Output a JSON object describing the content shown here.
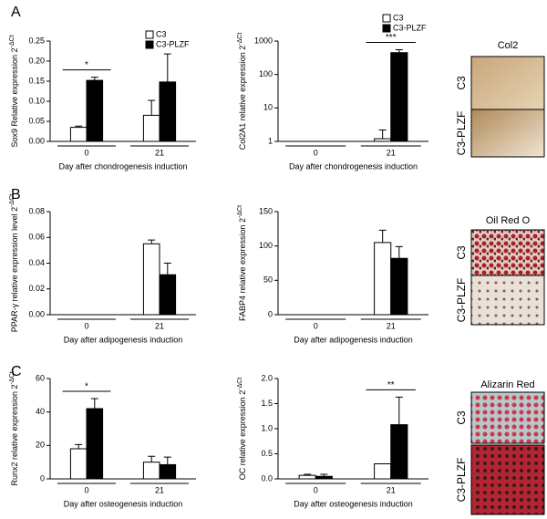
{
  "chart_data": [
    {
      "type": "bar",
      "panel": "A",
      "y_label": "Sox9 Relative expression 2",
      "y_label_sup": "-ΔCt",
      "x_label": "Day after chondrogenesis induction",
      "categories": [
        "0",
        "21"
      ],
      "series": [
        {
          "name": "C3",
          "color": "#ffffff",
          "values": [
            0.035,
            0.065
          ],
          "errors": [
            0.003,
            0.037
          ]
        },
        {
          "name": "C3-PLZF",
          "color": "#000000",
          "values": [
            0.152,
            0.148
          ],
          "errors": [
            0.008,
            0.07
          ]
        }
      ],
      "significance": [
        "*",
        null
      ],
      "legend": "top-right",
      "ylim": [
        0,
        0.25
      ],
      "yticks": [
        {
          "value": 0,
          "label": "0.00"
        },
        {
          "value": 0.05,
          "label": "0.05"
        },
        {
          "value": 0.1,
          "label": "0.10"
        },
        {
          "value": 0.15,
          "label": "0.15"
        },
        {
          "value": 0.2,
          "label": "0.20"
        },
        {
          "value": 0.25,
          "label": "0.25"
        }
      ]
    },
    {
      "type": "bar",
      "y_label": "Col2A1 relative expression 2",
      "y_label_sup": "-ΔCt",
      "x_label": "Day after chondrogenesis induction",
      "categories": [
        "0",
        "21"
      ],
      "series": [
        {
          "name": "C3",
          "color": "#ffffff",
          "values": [
            1,
            1.2
          ],
          "errors": [
            0,
            1
          ]
        },
        {
          "name": "C3-PLZF",
          "color": "#000000",
          "values": [
            1,
            450
          ],
          "errors": [
            0,
            100
          ]
        }
      ],
      "significance": [
        null,
        "***"
      ],
      "legend": "top-right",
      "log_scale": true,
      "ylim": [
        1,
        1000
      ],
      "yticks": [
        1,
        10,
        100,
        1000
      ]
    },
    {
      "type": "bar",
      "panel": "B",
      "y_label": "PPAR-γ relative expression level 2",
      "y_label_sup": "-ΔCt",
      "x_label": "Day after adipogenesis induction",
      "categories": [
        "0",
        "21"
      ],
      "series": [
        {
          "name": "C3",
          "color": "#ffffff",
          "values": [
            0,
            0.055
          ],
          "errors": [
            0,
            0.003
          ]
        },
        {
          "name": "C3-PLZF",
          "color": "#000000",
          "values": [
            0,
            0.031
          ],
          "errors": [
            0,
            0.009
          ]
        }
      ],
      "significance": [
        null,
        null
      ],
      "ylim": [
        0,
        0.08
      ],
      "yticks": [
        {
          "value": 0,
          "label": "0.00"
        },
        {
          "value": 0.02,
          "label": "0.02"
        },
        {
          "value": 0.04,
          "label": "0.04"
        },
        {
          "value": 0.06,
          "label": "0.06"
        },
        {
          "value": 0.08,
          "label": "0.08"
        }
      ]
    },
    {
      "type": "bar",
      "y_label": "FABP4 relative expression 2",
      "y_label_sup": "-ΔCt",
      "x_label": "Day after adipogenesis induction",
      "categories": [
        "0",
        "21"
      ],
      "series": [
        {
          "name": "C3",
          "color": "#ffffff",
          "values": [
            0,
            105
          ],
          "errors": [
            0,
            18
          ]
        },
        {
          "name": "C3-PLZF",
          "color": "#000000",
          "values": [
            0,
            82
          ],
          "errors": [
            0,
            17
          ]
        }
      ],
      "significance": [
        null,
        null
      ],
      "ylim": [
        0,
        150
      ],
      "yticks": [
        0,
        50,
        100,
        150
      ]
    },
    {
      "type": "bar",
      "panel": "C",
      "y_label": "Runx2 relative expression 2",
      "y_label_sup": "-ΔCt",
      "x_label": "Day after osteogenesis induction",
      "categories": [
        "0",
        "21"
      ],
      "series": [
        {
          "name": "C3",
          "color": "#ffffff",
          "values": [
            18,
            10
          ],
          "errors": [
            2.5,
            3.5
          ]
        },
        {
          "name": "C3-PLZF",
          "color": "#000000",
          "values": [
            42,
            8.5
          ],
          "errors": [
            6,
            4.5
          ]
        }
      ],
      "significance": [
        "*",
        null
      ],
      "ylim": [
        0,
        60
      ],
      "yticks": [
        0,
        20,
        40,
        60
      ]
    },
    {
      "type": "bar",
      "y_label": "OC relative expression 2",
      "y_label_sup": "-ΔCt",
      "x_label": "Day after osteogenesis induction",
      "categories": [
        "0",
        "21"
      ],
      "series": [
        {
          "name": "C3",
          "color": "#ffffff",
          "values": [
            0.07,
            0.3
          ],
          "errors": [
            0.02,
            0
          ]
        },
        {
          "name": "C3-PLZF",
          "color": "#000000",
          "values": [
            0.05,
            1.08
          ],
          "errors": [
            0.04,
            0.55
          ]
        }
      ],
      "significance": [
        null,
        "**"
      ],
      "ylim": [
        0,
        2
      ],
      "yticks": [
        {
          "value": 0,
          "label": "0.0"
        },
        {
          "value": 0.5,
          "label": "0.5"
        },
        {
          "value": 1,
          "label": "1.0"
        },
        {
          "value": 1.5,
          "label": "1.5"
        },
        {
          "value": 2,
          "label": "2.0"
        }
      ]
    }
  ],
  "images": [
    {
      "title": "Col2",
      "rows": [
        "C3",
        "C3-PLZF"
      ]
    },
    {
      "title": "Oil Red O",
      "rows": [
        "C3",
        "C3-PLZF"
      ]
    },
    {
      "title": "Alizarin Red",
      "rows": [
        "C3",
        "C3-PLZF"
      ]
    }
  ]
}
